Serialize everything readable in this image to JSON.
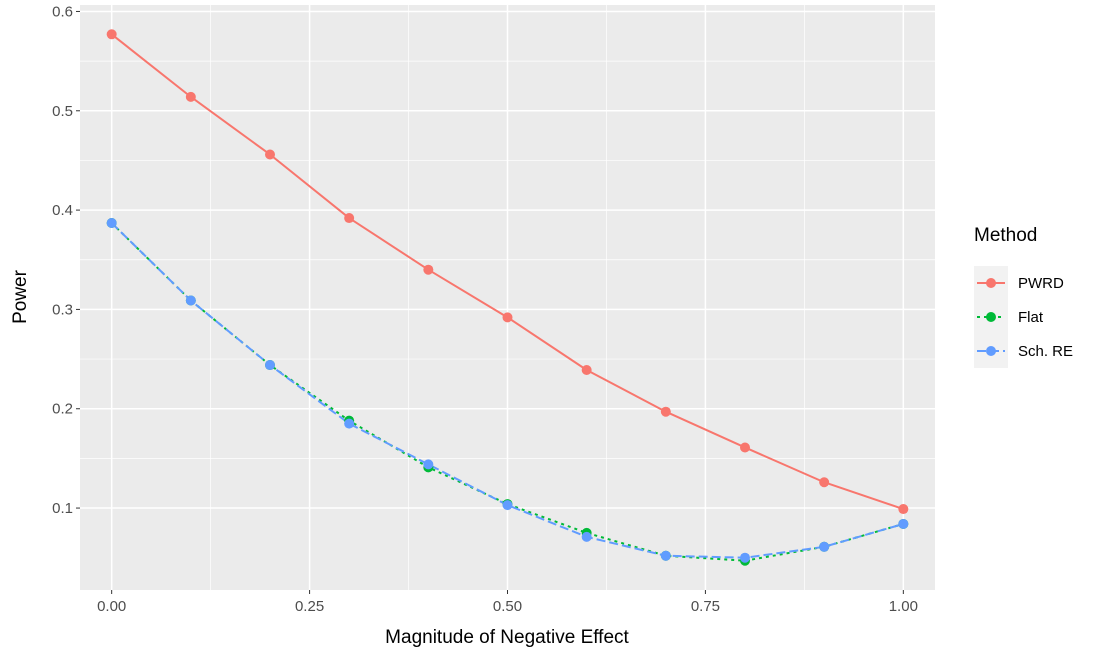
{
  "chart_data": {
    "type": "line",
    "title": "",
    "xlabel": "Magnitude of Negative Effect",
    "ylabel": "Power",
    "xlim": [
      -0.04,
      1.04
    ],
    "ylim": [
      0.0175,
      0.6065
    ],
    "x_ticks": [
      0.0,
      0.25,
      0.5,
      0.75,
      1.0
    ],
    "x_tick_labels": [
      "0.00",
      "0.25",
      "0.50",
      "0.75",
      "1.00"
    ],
    "y_ticks": [
      0.1,
      0.2,
      0.3,
      0.4,
      0.5,
      0.6
    ],
    "y_tick_labels": [
      "0.1",
      "0.2",
      "0.3",
      "0.4",
      "0.5",
      "0.6"
    ],
    "grid": true,
    "legend": {
      "title": "Method",
      "placement": "right"
    },
    "x": [
      0.0,
      0.1,
      0.2,
      0.3,
      0.4,
      0.5,
      0.6,
      0.7,
      0.8,
      0.9,
      1.0
    ],
    "series": [
      {
        "name": "PWRD",
        "color": "#F8766D",
        "dash": "solid",
        "values": [
          0.577,
          0.514,
          0.456,
          0.392,
          0.34,
          0.292,
          0.239,
          0.197,
          0.161,
          0.126,
          0.099
        ]
      },
      {
        "name": "Flat",
        "color": "#00BA38",
        "dash": "dotted",
        "values": [
          0.387,
          0.309,
          0.244,
          0.188,
          0.141,
          0.104,
          0.075,
          0.052,
          0.047,
          0.061,
          0.084
        ]
      },
      {
        "name": "Sch. RE",
        "color": "#619CFF",
        "dash": "dashed",
        "values": [
          0.387,
          0.309,
          0.244,
          0.185,
          0.144,
          0.103,
          0.071,
          0.052,
          0.05,
          0.061,
          0.084
        ]
      }
    ]
  }
}
